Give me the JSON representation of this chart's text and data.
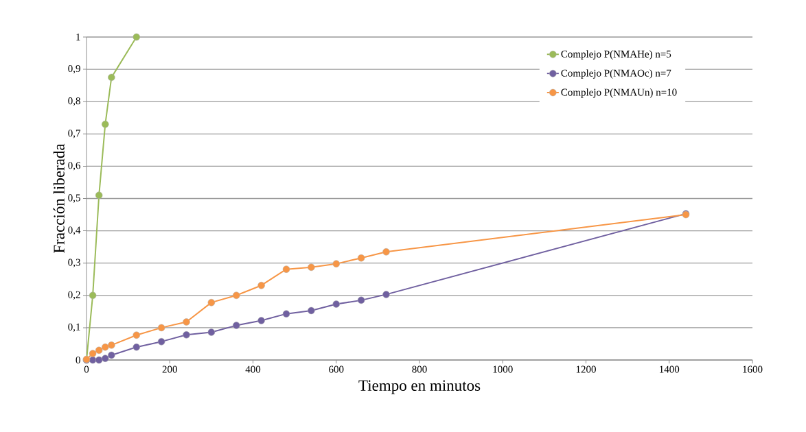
{
  "chart_data": {
    "type": "line",
    "xlabel": "Tiempo en minutos",
    "ylabel": "Fracción liberada",
    "xlim": [
      0,
      1600
    ],
    "xticks": [
      0,
      200,
      400,
      600,
      800,
      1000,
      1200,
      1400,
      1600
    ],
    "ylim": [
      0,
      1
    ],
    "yticks": [
      0,
      {
        "value": 0.1,
        "label": "0,1"
      },
      {
        "value": 0.2,
        "label": "0,2"
      },
      {
        "value": 0.3,
        "label": "0,3"
      },
      {
        "value": 0.4,
        "label": "0,4"
      },
      {
        "value": 0.5,
        "label": "0,5"
      },
      {
        "value": 0.6,
        "label": "0,6"
      },
      {
        "value": 0.7,
        "label": "0,7"
      },
      {
        "value": 0.8,
        "label": "0,8"
      },
      {
        "value": 0.9,
        "label": "0,9"
      },
      1
    ],
    "grid": "y",
    "legend": "top right",
    "marker": "circle",
    "line_style": "solid",
    "series": [
      {
        "name": "Complejo P(NMAHe) n=5",
        "color": "#9bbb59",
        "x": [
          0,
          15,
          30,
          45,
          60,
          120
        ],
        "values": [
          0,
          0.2,
          0.51,
          0.73,
          0.875,
          1.0
        ]
      },
      {
        "name": "Complejo P(NMAOc) n=7",
        "color": "#7060a0",
        "x": [
          0,
          15,
          30,
          45,
          60,
          120,
          180,
          240,
          300,
          360,
          420,
          480,
          540,
          600,
          660,
          720,
          1440
        ],
        "values": [
          0,
          0,
          0,
          0.005,
          0.015,
          0.04,
          0.057,
          0.078,
          0.086,
          0.107,
          0.122,
          0.143,
          0.153,
          0.173,
          0.185,
          0.203,
          0.453
        ]
      },
      {
        "name": "Complejo P(NMAUn) n=10",
        "color": "#f79646",
        "x": [
          0,
          15,
          30,
          45,
          60,
          120,
          180,
          240,
          300,
          360,
          420,
          480,
          540,
          600,
          660,
          720,
          1440
        ],
        "values": [
          0.002,
          0.02,
          0.03,
          0.04,
          0.046,
          0.077,
          0.1,
          0.118,
          0.178,
          0.2,
          0.231,
          0.281,
          0.287,
          0.298,
          0.316,
          0.335,
          0.45
        ]
      }
    ]
  }
}
